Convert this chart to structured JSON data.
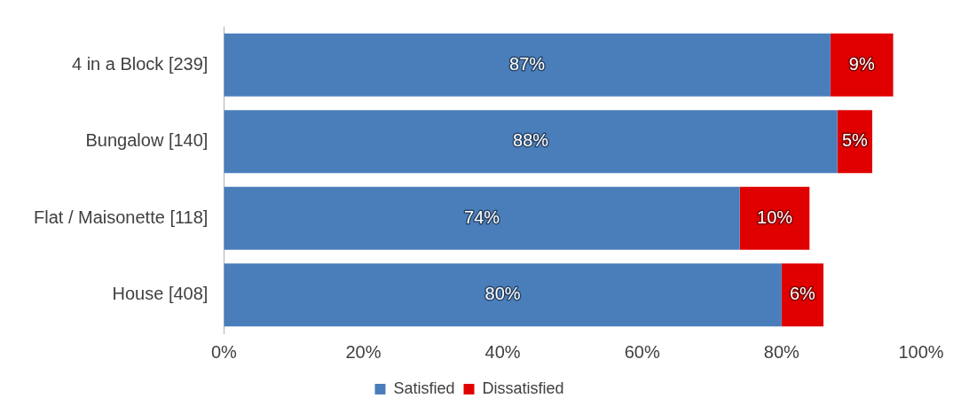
{
  "chart_data": {
    "type": "bar",
    "orientation": "horizontal",
    "stacked": true,
    "categories": [
      "4 in a Block [239]",
      "Bungalow [140]",
      "Flat / Maisonette [118]",
      "House [408]"
    ],
    "series": [
      {
        "name": "Satisfied",
        "color": "#4a7ebb",
        "values": [
          87,
          88,
          74,
          80
        ],
        "value_labels": [
          "87%",
          "88%",
          "74%",
          "80%"
        ]
      },
      {
        "name": "Dissatisfied",
        "color": "#e00000",
        "values": [
          9,
          5,
          10,
          6
        ],
        "value_labels": [
          "9%",
          "5%",
          "10%",
          "6%"
        ]
      }
    ],
    "xlim": [
      0,
      100
    ],
    "xticks": [
      {
        "value": 0,
        "label": "0%"
      },
      {
        "value": 20,
        "label": "20%"
      },
      {
        "value": 40,
        "label": "40%"
      },
      {
        "value": 60,
        "label": "60%"
      },
      {
        "value": 80,
        "label": "80%"
      },
      {
        "value": 100,
        "label": "100%"
      }
    ],
    "grid": false,
    "legend": "bottom"
  }
}
